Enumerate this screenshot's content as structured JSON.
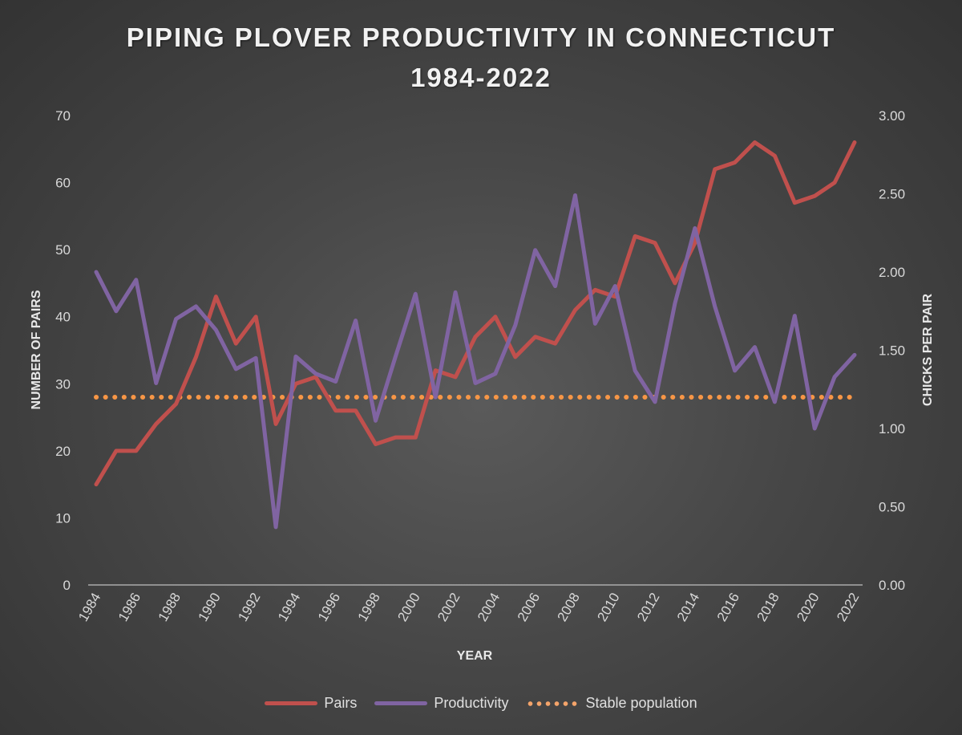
{
  "chart_data": {
    "type": "line",
    "title_line1": "PIPING PLOVER PRODUCTIVITY IN CONNECTICUT",
    "title_line2": "1984-2022",
    "xlabel": "YEAR",
    "ylabel_left": "NUMBER OF PAIRS",
    "ylabel_right": "CHICKS PER PAIR",
    "ylim_left": [
      0,
      70
    ],
    "ylim_right": [
      0,
      3
    ],
    "yticks_left": [
      "0",
      "10",
      "20",
      "30",
      "40",
      "50",
      "60",
      "70"
    ],
    "yticks_right": [
      "0.00",
      "0.50",
      "1.00",
      "1.50",
      "2.00",
      "2.50",
      "3.00"
    ],
    "xlim": [
      1984,
      2022
    ],
    "xtick_labels": [
      "1984",
      "1986",
      "1988",
      "1990",
      "1992",
      "1994",
      "1996",
      "1998",
      "2000",
      "2002",
      "2004",
      "2006",
      "2008",
      "2010",
      "2012",
      "2014",
      "2016",
      "2018",
      "2020",
      "2022"
    ],
    "grid": false,
    "legend_position": "bottom",
    "x": [
      1984,
      1985,
      1986,
      1987,
      1988,
      1989,
      1990,
      1991,
      1992,
      1993,
      1994,
      1995,
      1996,
      1997,
      1998,
      1999,
      2000,
      2001,
      2002,
      2003,
      2004,
      2005,
      2006,
      2007,
      2008,
      2009,
      2010,
      2011,
      2012,
      2013,
      2014,
      2015,
      2016,
      2017,
      2018,
      2019,
      2020,
      2021,
      2022
    ],
    "series": [
      {
        "name": "Pairs",
        "axis": "left",
        "color": "#c0504d",
        "style": "solid",
        "values": [
          15,
          20,
          20,
          24,
          27,
          34,
          43,
          36,
          40,
          24,
          30,
          31,
          26,
          26,
          21,
          22,
          22,
          32,
          31,
          37,
          40,
          34,
          37,
          36,
          41,
          44,
          43,
          52,
          51,
          45,
          51,
          62,
          63,
          66,
          64,
          57,
          58,
          60,
          66
        ]
      },
      {
        "name": "Productivity",
        "axis": "right",
        "color": "#8064a2",
        "style": "solid",
        "values": [
          2.0,
          1.75,
          1.95,
          1.29,
          1.7,
          1.78,
          1.63,
          1.38,
          1.45,
          0.37,
          1.46,
          1.35,
          1.3,
          1.69,
          1.05,
          1.46,
          1.86,
          1.2,
          1.87,
          1.29,
          1.35,
          1.66,
          2.14,
          1.91,
          2.49,
          1.67,
          1.91,
          1.37,
          1.17,
          1.8,
          2.28,
          1.78,
          1.37,
          1.52,
          1.17,
          1.72,
          1.0,
          1.33,
          1.47
        ]
      },
      {
        "name": "Stable population",
        "axis": "left",
        "color": "#f79646",
        "style": "dotted",
        "values": [
          28,
          28,
          28,
          28,
          28,
          28,
          28,
          28,
          28,
          28,
          28,
          28,
          28,
          28,
          28,
          28,
          28,
          28,
          28,
          28,
          28,
          28,
          28,
          28,
          28,
          28,
          28,
          28,
          28,
          28,
          28,
          28,
          28,
          28,
          28,
          28,
          28,
          28,
          28
        ]
      }
    ]
  }
}
